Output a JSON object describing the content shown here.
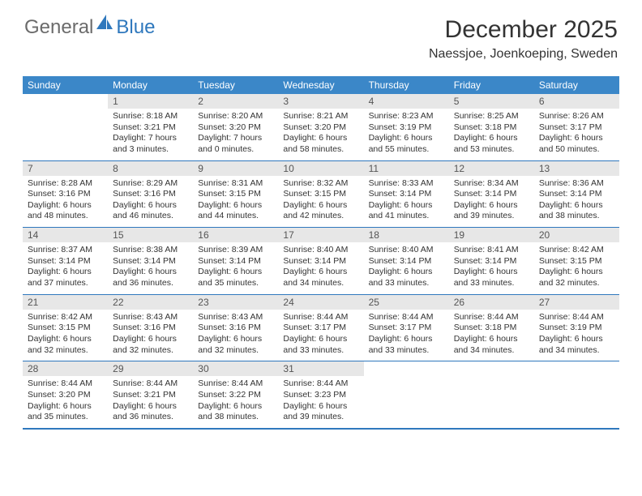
{
  "logo": {
    "general": "General",
    "blue": "Blue"
  },
  "title": "December 2025",
  "location": "Naessjoe, Joenkoeping, Sweden",
  "colors": {
    "header_bg": "#3b87c8",
    "border": "#2f78bd",
    "daynum_bg": "#e7e7e7",
    "text": "#333333",
    "logo_gray": "#6b6b6b",
    "logo_blue": "#2f78bd"
  },
  "typography": {
    "title_fontsize": 30,
    "location_fontsize": 16,
    "header_fontsize": 12,
    "cell_fontsize": 10.5
  },
  "day_headers": [
    "Sunday",
    "Monday",
    "Tuesday",
    "Wednesday",
    "Thursday",
    "Friday",
    "Saturday"
  ],
  "weeks": [
    [
      {
        "n": "",
        "sunrise": "",
        "sunset": "",
        "daylight": ""
      },
      {
        "n": "1",
        "sunrise": "Sunrise: 8:18 AM",
        "sunset": "Sunset: 3:21 PM",
        "daylight": "Daylight: 7 hours and 3 minutes."
      },
      {
        "n": "2",
        "sunrise": "Sunrise: 8:20 AM",
        "sunset": "Sunset: 3:20 PM",
        "daylight": "Daylight: 7 hours and 0 minutes."
      },
      {
        "n": "3",
        "sunrise": "Sunrise: 8:21 AM",
        "sunset": "Sunset: 3:20 PM",
        "daylight": "Daylight: 6 hours and 58 minutes."
      },
      {
        "n": "4",
        "sunrise": "Sunrise: 8:23 AM",
        "sunset": "Sunset: 3:19 PM",
        "daylight": "Daylight: 6 hours and 55 minutes."
      },
      {
        "n": "5",
        "sunrise": "Sunrise: 8:25 AM",
        "sunset": "Sunset: 3:18 PM",
        "daylight": "Daylight: 6 hours and 53 minutes."
      },
      {
        "n": "6",
        "sunrise": "Sunrise: 8:26 AM",
        "sunset": "Sunset: 3:17 PM",
        "daylight": "Daylight: 6 hours and 50 minutes."
      }
    ],
    [
      {
        "n": "7",
        "sunrise": "Sunrise: 8:28 AM",
        "sunset": "Sunset: 3:16 PM",
        "daylight": "Daylight: 6 hours and 48 minutes."
      },
      {
        "n": "8",
        "sunrise": "Sunrise: 8:29 AM",
        "sunset": "Sunset: 3:16 PM",
        "daylight": "Daylight: 6 hours and 46 minutes."
      },
      {
        "n": "9",
        "sunrise": "Sunrise: 8:31 AM",
        "sunset": "Sunset: 3:15 PM",
        "daylight": "Daylight: 6 hours and 44 minutes."
      },
      {
        "n": "10",
        "sunrise": "Sunrise: 8:32 AM",
        "sunset": "Sunset: 3:15 PM",
        "daylight": "Daylight: 6 hours and 42 minutes."
      },
      {
        "n": "11",
        "sunrise": "Sunrise: 8:33 AM",
        "sunset": "Sunset: 3:14 PM",
        "daylight": "Daylight: 6 hours and 41 minutes."
      },
      {
        "n": "12",
        "sunrise": "Sunrise: 8:34 AM",
        "sunset": "Sunset: 3:14 PM",
        "daylight": "Daylight: 6 hours and 39 minutes."
      },
      {
        "n": "13",
        "sunrise": "Sunrise: 8:36 AM",
        "sunset": "Sunset: 3:14 PM",
        "daylight": "Daylight: 6 hours and 38 minutes."
      }
    ],
    [
      {
        "n": "14",
        "sunrise": "Sunrise: 8:37 AM",
        "sunset": "Sunset: 3:14 PM",
        "daylight": "Daylight: 6 hours and 37 minutes."
      },
      {
        "n": "15",
        "sunrise": "Sunrise: 8:38 AM",
        "sunset": "Sunset: 3:14 PM",
        "daylight": "Daylight: 6 hours and 36 minutes."
      },
      {
        "n": "16",
        "sunrise": "Sunrise: 8:39 AM",
        "sunset": "Sunset: 3:14 PM",
        "daylight": "Daylight: 6 hours and 35 minutes."
      },
      {
        "n": "17",
        "sunrise": "Sunrise: 8:40 AM",
        "sunset": "Sunset: 3:14 PM",
        "daylight": "Daylight: 6 hours and 34 minutes."
      },
      {
        "n": "18",
        "sunrise": "Sunrise: 8:40 AM",
        "sunset": "Sunset: 3:14 PM",
        "daylight": "Daylight: 6 hours and 33 minutes."
      },
      {
        "n": "19",
        "sunrise": "Sunrise: 8:41 AM",
        "sunset": "Sunset: 3:14 PM",
        "daylight": "Daylight: 6 hours and 33 minutes."
      },
      {
        "n": "20",
        "sunrise": "Sunrise: 8:42 AM",
        "sunset": "Sunset: 3:15 PM",
        "daylight": "Daylight: 6 hours and 32 minutes."
      }
    ],
    [
      {
        "n": "21",
        "sunrise": "Sunrise: 8:42 AM",
        "sunset": "Sunset: 3:15 PM",
        "daylight": "Daylight: 6 hours and 32 minutes."
      },
      {
        "n": "22",
        "sunrise": "Sunrise: 8:43 AM",
        "sunset": "Sunset: 3:16 PM",
        "daylight": "Daylight: 6 hours and 32 minutes."
      },
      {
        "n": "23",
        "sunrise": "Sunrise: 8:43 AM",
        "sunset": "Sunset: 3:16 PM",
        "daylight": "Daylight: 6 hours and 32 minutes."
      },
      {
        "n": "24",
        "sunrise": "Sunrise: 8:44 AM",
        "sunset": "Sunset: 3:17 PM",
        "daylight": "Daylight: 6 hours and 33 minutes."
      },
      {
        "n": "25",
        "sunrise": "Sunrise: 8:44 AM",
        "sunset": "Sunset: 3:17 PM",
        "daylight": "Daylight: 6 hours and 33 minutes."
      },
      {
        "n": "26",
        "sunrise": "Sunrise: 8:44 AM",
        "sunset": "Sunset: 3:18 PM",
        "daylight": "Daylight: 6 hours and 34 minutes."
      },
      {
        "n": "27",
        "sunrise": "Sunrise: 8:44 AM",
        "sunset": "Sunset: 3:19 PM",
        "daylight": "Daylight: 6 hours and 34 minutes."
      }
    ],
    [
      {
        "n": "28",
        "sunrise": "Sunrise: 8:44 AM",
        "sunset": "Sunset: 3:20 PM",
        "daylight": "Daylight: 6 hours and 35 minutes."
      },
      {
        "n": "29",
        "sunrise": "Sunrise: 8:44 AM",
        "sunset": "Sunset: 3:21 PM",
        "daylight": "Daylight: 6 hours and 36 minutes."
      },
      {
        "n": "30",
        "sunrise": "Sunrise: 8:44 AM",
        "sunset": "Sunset: 3:22 PM",
        "daylight": "Daylight: 6 hours and 38 minutes."
      },
      {
        "n": "31",
        "sunrise": "Sunrise: 8:44 AM",
        "sunset": "Sunset: 3:23 PM",
        "daylight": "Daylight: 6 hours and 39 minutes."
      },
      {
        "n": "",
        "sunrise": "",
        "sunset": "",
        "daylight": ""
      },
      {
        "n": "",
        "sunrise": "",
        "sunset": "",
        "daylight": ""
      },
      {
        "n": "",
        "sunrise": "",
        "sunset": "",
        "daylight": ""
      }
    ]
  ]
}
